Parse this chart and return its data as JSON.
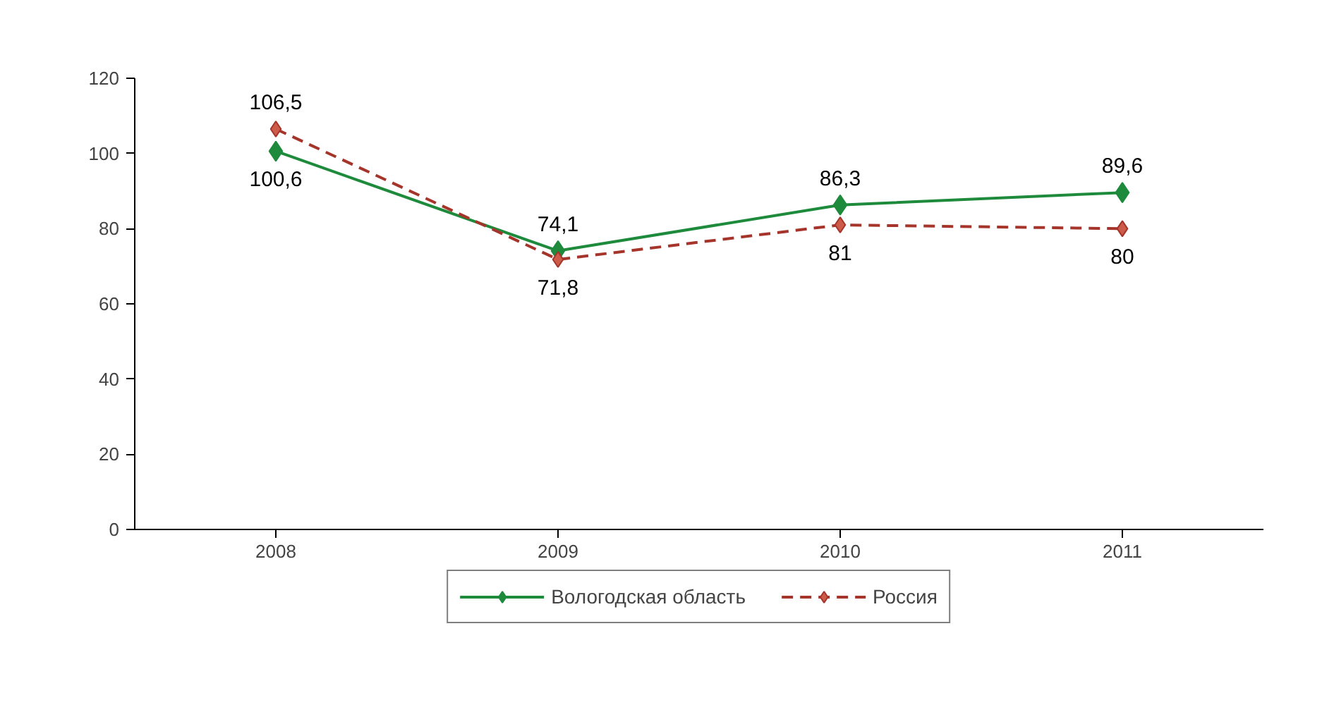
{
  "chart_data": {
    "type": "line",
    "categories": [
      "2008",
      "2009",
      "2010",
      "2011"
    ],
    "series": [
      {
        "name": "Вологодская область",
        "color": "#1e8a3c",
        "values": [
          100.6,
          74.1,
          86.3,
          89.6
        ],
        "value_labels": [
          "100,6",
          "74,1",
          "86,3",
          "89,6"
        ],
        "line_style": "solid",
        "marker": "diamond"
      },
      {
        "name": "Россия",
        "color": "#a5342a",
        "values": [
          106.5,
          71.8,
          81,
          80
        ],
        "value_labels": [
          "106,5",
          "71,8",
          "81",
          "80"
        ],
        "line_style": "dashed",
        "marker": "diamond"
      }
    ],
    "ylim": [
      0,
      120
    ],
    "yticks": [
      0,
      20,
      40,
      60,
      80,
      100,
      120
    ],
    "grid": false,
    "legend": "bottom"
  }
}
